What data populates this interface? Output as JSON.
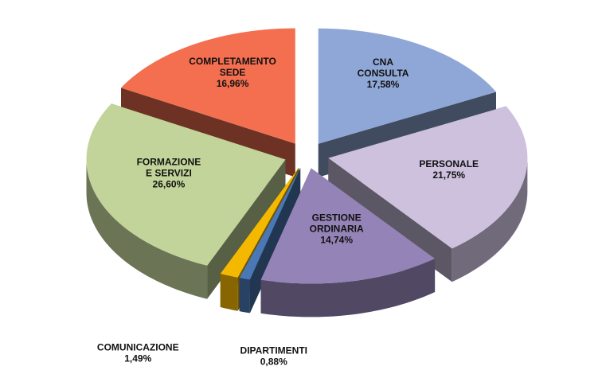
{
  "chart_data": {
    "type": "pie3d",
    "categories": [
      "CNA\nCONSULTA",
      "PERSONALE",
      "GESTIONE\nORDINARIA",
      "DIPARTIMENTI",
      "COMUNICAZIONE",
      "FORMAZIONE\nE SERVIZI",
      "COMPLETAMENTO\nSEDE"
    ],
    "values": [
      17.58,
      21.75,
      14.74,
      0.88,
      1.49,
      26.6,
      16.96
    ],
    "value_labels": [
      "17,58%",
      "21,75%",
      "14,74%",
      "0,88%",
      "1,49%",
      "26,60%",
      "16,96%"
    ],
    "colors": [
      "#8fa7d6",
      "#cdc1de",
      "#9483b6",
      "#4a78b5",
      "#f5b800",
      "#c2d49a",
      "#f36f50"
    ]
  }
}
